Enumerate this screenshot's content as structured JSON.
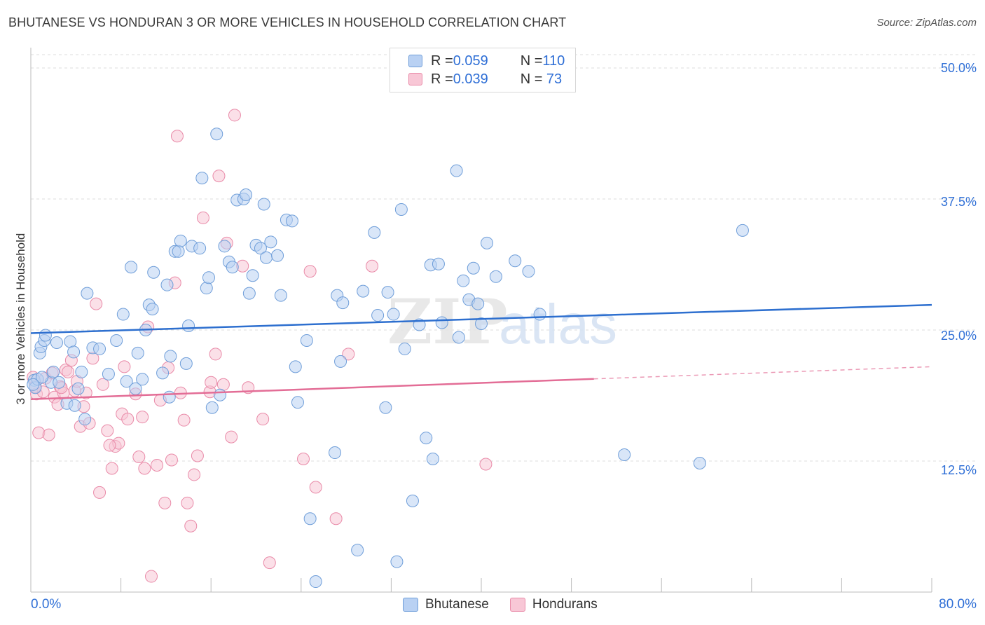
{
  "header": {
    "title": "BHUTANESE VS HONDURAN 3 OR MORE VEHICLES IN HOUSEHOLD CORRELATION CHART",
    "source": "Source: ZipAtlas.com"
  },
  "legend": {
    "rows": [
      {
        "r_label": "R = ",
        "r_value": "0.059",
        "n_label": "N = ",
        "n_value": "110"
      },
      {
        "r_label": "R = ",
        "r_value": "0.039",
        "n_label": "N = ",
        "n_value": " 73"
      }
    ]
  },
  "watermark": {
    "zip": "ZIP",
    "atlas": "atlas"
  },
  "colors": {
    "blue_fill": "#b9d1f3",
    "blue_stroke": "#6f9ed9",
    "blue_line": "#2d6fcf",
    "pink_fill": "#f8c7d6",
    "pink_stroke": "#e98aa8",
    "pink_line": "#e36d96",
    "tick_text": "#2f6fd6",
    "grid": "#dcdcdc"
  },
  "chart_data": {
    "type": "scatter",
    "title": "BHUTANESE VS HONDURAN 3 OR MORE VEHICLES IN HOUSEHOLD CORRELATION CHART",
    "xlabel": "",
    "ylabel": "3 or more Vehicles in Household",
    "xlim": [
      0,
      80
    ],
    "ylim": [
      0,
      50
    ],
    "x_tick_labels": [
      "0.0%",
      "80.0%"
    ],
    "y_ticks": [
      12.5,
      25.0,
      37.5,
      50.0
    ],
    "y_tick_labels": [
      "12.5%",
      "25.0%",
      "37.5%",
      "50.0%"
    ],
    "grid": "horizontal dashed",
    "legend_position": "top-center",
    "series": [
      {
        "name": "Bhutanese",
        "r": 0.059,
        "n": 110,
        "trend": {
          "x": [
            0,
            80
          ],
          "y": [
            24.7,
            27.4
          ],
          "dashed_from": null
        },
        "points": [
          [
            0.3,
            20.2
          ],
          [
            0.4,
            19.5
          ],
          [
            0.6,
            20.3
          ],
          [
            0.8,
            22.8
          ],
          [
            0.9,
            23.4
          ],
          [
            1.2,
            24.0
          ],
          [
            1.3,
            24.5
          ],
          [
            1.8,
            20.0
          ],
          [
            2.0,
            21.0
          ],
          [
            2.3,
            23.8
          ],
          [
            2.5,
            20.0
          ],
          [
            3.2,
            18.0
          ],
          [
            3.5,
            23.9
          ],
          [
            3.8,
            22.9
          ],
          [
            3.9,
            17.8
          ],
          [
            4.2,
            19.4
          ],
          [
            4.8,
            16.5
          ],
          [
            5.0,
            28.5
          ],
          [
            5.5,
            23.3
          ],
          [
            6.1,
            23.2
          ],
          [
            6.9,
            20.8
          ],
          [
            7.6,
            24.0
          ],
          [
            8.2,
            26.5
          ],
          [
            8.5,
            20.1
          ],
          [
            8.9,
            31.0
          ],
          [
            9.3,
            19.4
          ],
          [
            9.5,
            22.8
          ],
          [
            9.9,
            20.3
          ],
          [
            10.2,
            25.0
          ],
          [
            10.5,
            27.4
          ],
          [
            10.8,
            27.0
          ],
          [
            10.9,
            30.5
          ],
          [
            11.7,
            20.9
          ],
          [
            12.1,
            29.3
          ],
          [
            12.3,
            18.6
          ],
          [
            12.4,
            22.5
          ],
          [
            12.8,
            32.5
          ],
          [
            13.1,
            32.5
          ],
          [
            13.3,
            33.5
          ],
          [
            13.8,
            21.8
          ],
          [
            14.0,
            25.4
          ],
          [
            14.3,
            33.0
          ],
          [
            15.0,
            32.8
          ],
          [
            15.2,
            39.5
          ],
          [
            15.6,
            29.0
          ],
          [
            15.8,
            30.0
          ],
          [
            16.1,
            17.6
          ],
          [
            16.5,
            43.7
          ],
          [
            16.8,
            18.8
          ],
          [
            17.2,
            33.0
          ],
          [
            17.6,
            31.5
          ],
          [
            17.9,
            31.0
          ],
          [
            18.3,
            37.4
          ],
          [
            18.9,
            37.5
          ],
          [
            19.1,
            37.9
          ],
          [
            19.4,
            28.5
          ],
          [
            19.7,
            30.2
          ],
          [
            20.0,
            33.1
          ],
          [
            20.4,
            32.8
          ],
          [
            20.7,
            37.0
          ],
          [
            20.9,
            31.9
          ],
          [
            21.3,
            33.4
          ],
          [
            21.9,
            32.1
          ],
          [
            22.2,
            28.3
          ],
          [
            22.7,
            35.5
          ],
          [
            23.2,
            35.4
          ],
          [
            23.5,
            21.5
          ],
          [
            23.7,
            18.1
          ],
          [
            24.5,
            24.0
          ],
          [
            24.8,
            7.0
          ],
          [
            25.3,
            1.0
          ],
          [
            27.0,
            13.3
          ],
          [
            27.2,
            28.3
          ],
          [
            27.5,
            22.0
          ],
          [
            27.7,
            27.6
          ],
          [
            29.0,
            4.0
          ],
          [
            29.5,
            28.7
          ],
          [
            30.5,
            34.3
          ],
          [
            30.8,
            26.4
          ],
          [
            31.5,
            17.6
          ],
          [
            31.7,
            28.6
          ],
          [
            32.2,
            26.5
          ],
          [
            32.5,
            2.9
          ],
          [
            32.9,
            36.5
          ],
          [
            33.2,
            23.2
          ],
          [
            33.9,
            8.7
          ],
          [
            34.5,
            25.5
          ],
          [
            35.1,
            14.7
          ],
          [
            35.5,
            31.2
          ],
          [
            35.7,
            12.7
          ],
          [
            36.2,
            31.3
          ],
          [
            36.5,
            25.7
          ],
          [
            37.8,
            40.2
          ],
          [
            38.0,
            24.3
          ],
          [
            38.4,
            29.7
          ],
          [
            38.9,
            27.9
          ],
          [
            39.3,
            30.9
          ],
          [
            39.7,
            27.5
          ],
          [
            40.0,
            25.6
          ],
          [
            40.5,
            33.3
          ],
          [
            41.3,
            30.1
          ],
          [
            43.0,
            31.6
          ],
          [
            44.2,
            30.6
          ],
          [
            45.2,
            26.5
          ],
          [
            52.7,
            13.1
          ],
          [
            59.4,
            12.3
          ],
          [
            63.2,
            34.5
          ],
          [
            0.2,
            19.8
          ],
          [
            1.0,
            20.5
          ],
          [
            4.5,
            21.0
          ]
        ]
      },
      {
        "name": "Hondurans",
        "r": 0.039,
        "n": 73,
        "trend": {
          "x": [
            0,
            80
          ],
          "y": [
            18.4,
            21.5
          ],
          "dashed_from": 50
        },
        "points": [
          [
            0.2,
            20.5
          ],
          [
            0.5,
            18.9
          ],
          [
            0.7,
            15.2
          ],
          [
            1.1,
            19.1
          ],
          [
            1.3,
            20.4
          ],
          [
            1.6,
            15.0
          ],
          [
            1.9,
            20.9
          ],
          [
            2.1,
            18.6
          ],
          [
            2.4,
            17.9
          ],
          [
            2.6,
            19.6
          ],
          [
            2.9,
            19.0
          ],
          [
            3.1,
            21.2
          ],
          [
            3.3,
            21.0
          ],
          [
            3.6,
            22.1
          ],
          [
            3.9,
            19.2
          ],
          [
            4.1,
            20.1
          ],
          [
            4.4,
            15.8
          ],
          [
            4.7,
            17.7
          ],
          [
            4.9,
            19.0
          ],
          [
            5.2,
            16.1
          ],
          [
            5.5,
            22.3
          ],
          [
            5.8,
            27.5
          ],
          [
            6.1,
            9.5
          ],
          [
            6.4,
            19.8
          ],
          [
            6.8,
            15.4
          ],
          [
            7.2,
            11.8
          ],
          [
            7.5,
            13.9
          ],
          [
            7.8,
            14.2
          ],
          [
            8.1,
            17.0
          ],
          [
            8.3,
            21.5
          ],
          [
            8.6,
            16.5
          ],
          [
            9.3,
            18.9
          ],
          [
            9.6,
            12.9
          ],
          [
            9.9,
            16.7
          ],
          [
            10.1,
            11.8
          ],
          [
            10.4,
            25.3
          ],
          [
            10.7,
            1.5
          ],
          [
            11.2,
            12.1
          ],
          [
            11.5,
            18.3
          ],
          [
            11.9,
            8.5
          ],
          [
            12.2,
            21.4
          ],
          [
            12.5,
            12.6
          ],
          [
            12.8,
            29.5
          ],
          [
            13.0,
            43.5
          ],
          [
            13.3,
            19.0
          ],
          [
            13.6,
            16.4
          ],
          [
            13.9,
            8.5
          ],
          [
            14.2,
            6.3
          ],
          [
            14.5,
            11.2
          ],
          [
            14.8,
            13.0
          ],
          [
            15.3,
            35.7
          ],
          [
            15.9,
            19.1
          ],
          [
            16.4,
            22.7
          ],
          [
            16.7,
            39.7
          ],
          [
            17.1,
            19.8
          ],
          [
            17.4,
            33.3
          ],
          [
            17.8,
            14.8
          ],
          [
            18.1,
            45.5
          ],
          [
            18.8,
            31.1
          ],
          [
            19.3,
            19.5
          ],
          [
            20.6,
            16.5
          ],
          [
            21.2,
            2.8
          ],
          [
            24.2,
            12.7
          ],
          [
            24.8,
            30.6
          ],
          [
            25.3,
            10.0
          ],
          [
            27.1,
            7.0
          ],
          [
            28.2,
            22.7
          ],
          [
            30.3,
            31.1
          ],
          [
            40.4,
            12.2
          ],
          [
            0.4,
            19.6
          ],
          [
            2.7,
            19.5
          ],
          [
            7.0,
            14.0
          ],
          [
            16.0,
            20.0
          ]
        ]
      }
    ]
  },
  "bottom_legend": {
    "items": [
      {
        "label": "Bhutanese"
      },
      {
        "label": "Hondurans"
      }
    ]
  },
  "axis": {
    "ylabel": "3 or more Vehicles in Household",
    "x_left": "0.0%",
    "x_right": "80.0%",
    "y_labels": [
      "50.0%",
      "37.5%",
      "25.0%",
      "12.5%"
    ]
  }
}
